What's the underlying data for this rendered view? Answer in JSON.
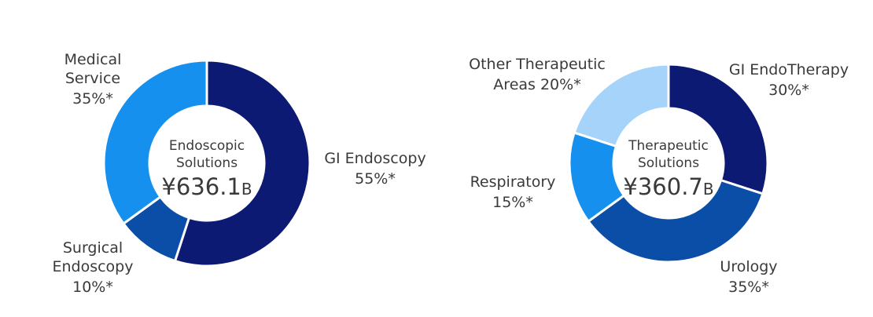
{
  "chart_data": [
    {
      "type": "pie",
      "center_title": [
        "Endoscopic",
        "Solutions"
      ],
      "center_value": "¥636.1",
      "center_unit": "B",
      "slices": [
        {
          "label": [
            "GI Endoscopy"
          ],
          "percent_label": "55%*",
          "value": 55,
          "color": "#0c1a73"
        },
        {
          "label": [
            "Surgical",
            "Endoscopy"
          ],
          "percent_label": "10%*",
          "value": 10,
          "color": "#0a4ea8"
        },
        {
          "label": [
            "Medical",
            "Service"
          ],
          "percent_label": "35%*",
          "value": 35,
          "color": "#1590ef"
        }
      ]
    },
    {
      "type": "pie",
      "center_title": [
        "Therapeutic",
        "Solutions"
      ],
      "center_value": "¥360.7",
      "center_unit": "B",
      "slices": [
        {
          "label": [
            "GI EndoTherapy"
          ],
          "percent_label": "30%*",
          "value": 30,
          "color": "#0c1a73"
        },
        {
          "label": [
            "Urology"
          ],
          "percent_label": "35%*",
          "value": 35,
          "color": "#0a4ea8"
        },
        {
          "label": [
            "Respiratory"
          ],
          "percent_label": "15%*",
          "value": 15,
          "color": "#1590ef"
        },
        {
          "label": [
            "Other Therapeutic",
            "Areas"
          ],
          "percent_label": "20%*",
          "value": 20,
          "color": "#a6d3fa"
        }
      ]
    }
  ]
}
